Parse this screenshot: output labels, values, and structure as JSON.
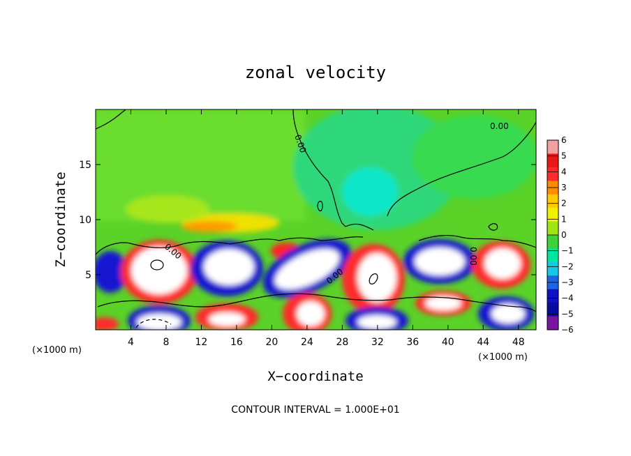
{
  "chart_data": {
    "type": "heatmap",
    "title": "zonal velocity",
    "xlabel": "X−coordinate",
    "ylabel": "Z−coordinate",
    "x_unit_left": "(×1000 m)",
    "x_unit_right": "(×1000 m)",
    "xlim": [
      0,
      50
    ],
    "ylim": [
      0,
      20
    ],
    "x_ticks": [
      4,
      8,
      12,
      16,
      20,
      24,
      28,
      32,
      36,
      40,
      44,
      48
    ],
    "x_tick_labels": [
      "4",
      "8",
      "12",
      "16",
      "20",
      "24",
      "28",
      "32",
      "36",
      "40",
      "44",
      "48"
    ],
    "y_ticks": [
      5,
      10,
      15
    ],
    "y_tick_labels": [
      "5",
      "10",
      "15"
    ],
    "colorbar": {
      "levels": [
        6,
        5,
        4,
        3,
        2,
        1,
        0,
        -1,
        -2,
        -3,
        -4,
        -5,
        -6
      ],
      "labels": [
        "6",
        "5",
        "4",
        "3",
        "2",
        "1",
        "0",
        "−1",
        "−2",
        "−3",
        "−4",
        "−5",
        "−6"
      ],
      "colors": [
        "#f2a0a0",
        "#e81818",
        "#ff2a2a",
        "#ff8c00",
        "#ffc800",
        "#f0f000",
        "#a0e614",
        "#3cd23c",
        "#00e6a0",
        "#14c8e6",
        "#2064e6",
        "#1010c8",
        "#0a0aa0",
        "#7814a0"
      ]
    },
    "contour_labels": [
      "0.00",
      "0.00",
      "0.00",
      "0.00",
      "0.00"
    ],
    "annotation": "CONTOUR INTERVAL = 1.000E+01",
    "grid": false
  }
}
